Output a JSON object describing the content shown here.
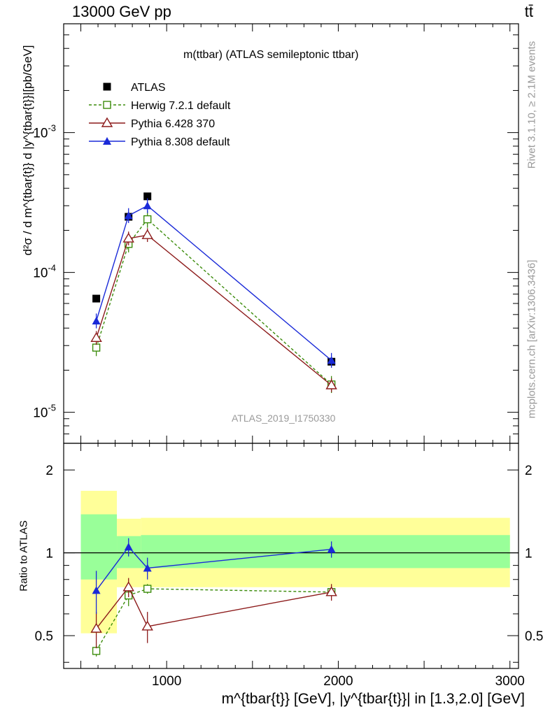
{
  "header": {
    "energy_label": "13000 GeV pp",
    "process_label": "tt̄"
  },
  "side_labels": {
    "rivet": "Rivet 3.1.10, ≥ 2.1M events",
    "source": "mcplots.cern.ch [arXiv:1306.3436]"
  },
  "chart_data": {
    "type": "line",
    "title": "m(ttbar) (ATLAS semileptonic ttbar)",
    "watermark": "ATLAS_2019_I1750330",
    "xlabel": "m^{tbar{t}} [GeV], |y^{tbar{t}}| in [1.3,2.0] [GeV]",
    "ylabel": "d²σ / d m^{tbar{t}} d |y^{tbar{t}}|[pb/GeV]",
    "ratio_ylabel": "Ratio to ATLAS",
    "xlim": [
      400,
      3050
    ],
    "ylim": [
      6e-06,
      0.006
    ],
    "yscale": "log",
    "ratio_ylim": [
      0.38,
      2.5
    ],
    "ratio_yscale": "log",
    "x_ticks": [
      "1000",
      "2000",
      "3000"
    ],
    "y_ticks": [
      "10^-3",
      "10^-4",
      "10^-5"
    ],
    "ratio_ticks": [
      "2",
      "1",
      "0.5"
    ],
    "bins": [
      [
        500,
        710
      ],
      [
        710,
        850
      ],
      [
        850,
        930
      ],
      [
        930,
        3000
      ]
    ],
    "x": [
      590,
      778,
      888,
      1960
    ],
    "series": [
      {
        "name": "ATLAS",
        "color": "#000000",
        "marker": "square",
        "values": [
          6.5e-05,
          0.00025,
          0.00035,
          2.3e-05
        ],
        "ratio": [
          1,
          1,
          1,
          1
        ]
      },
      {
        "name": "Herwig 7.2.1 default",
        "color": "#3c8c0c",
        "marker": "open-square",
        "dashed": true,
        "values": [
          2.9e-05,
          0.00016,
          0.00024,
          1.58e-05
        ],
        "ratio": [
          0.44,
          0.7,
          0.74,
          0.72
        ],
        "ratio_err": [
          0.02,
          0.06,
          0.03,
          0.02
        ]
      },
      {
        "name": "Pythia 6.428 370",
        "color": "#8c1a1a",
        "marker": "open-triangle",
        "values": [
          3.4e-05,
          0.000175,
          0.000185,
          1.56e-05
        ],
        "ratio": [
          0.53,
          0.75,
          0.54,
          0.72
        ],
        "ratio_err": [
          0.08,
          0.06,
          0.07,
          0.05
        ]
      },
      {
        "name": "Pythia 8.308 default",
        "color": "#1a2ad8",
        "marker": "filled-triangle",
        "values": [
          4.5e-05,
          0.000255,
          0.0003,
          2.35e-05
        ],
        "ratio": [
          0.73,
          1.05,
          0.88,
          1.03
        ],
        "ratio_err": [
          0.13,
          0.08,
          0.08,
          0.07
        ]
      }
    ],
    "uncertainty_bands": {
      "stat_color": "#99ff99",
      "total_color": "#ffff99",
      "inner_lo": [
        0.8,
        0.88,
        0.88,
        0.88
      ],
      "inner_hi": [
        1.38,
        1.15,
        1.16,
        1.16
      ],
      "outer_lo": [
        0.51,
        0.75,
        0.75,
        0.75
      ],
      "outer_hi": [
        1.68,
        1.33,
        1.34,
        1.34
      ]
    }
  }
}
